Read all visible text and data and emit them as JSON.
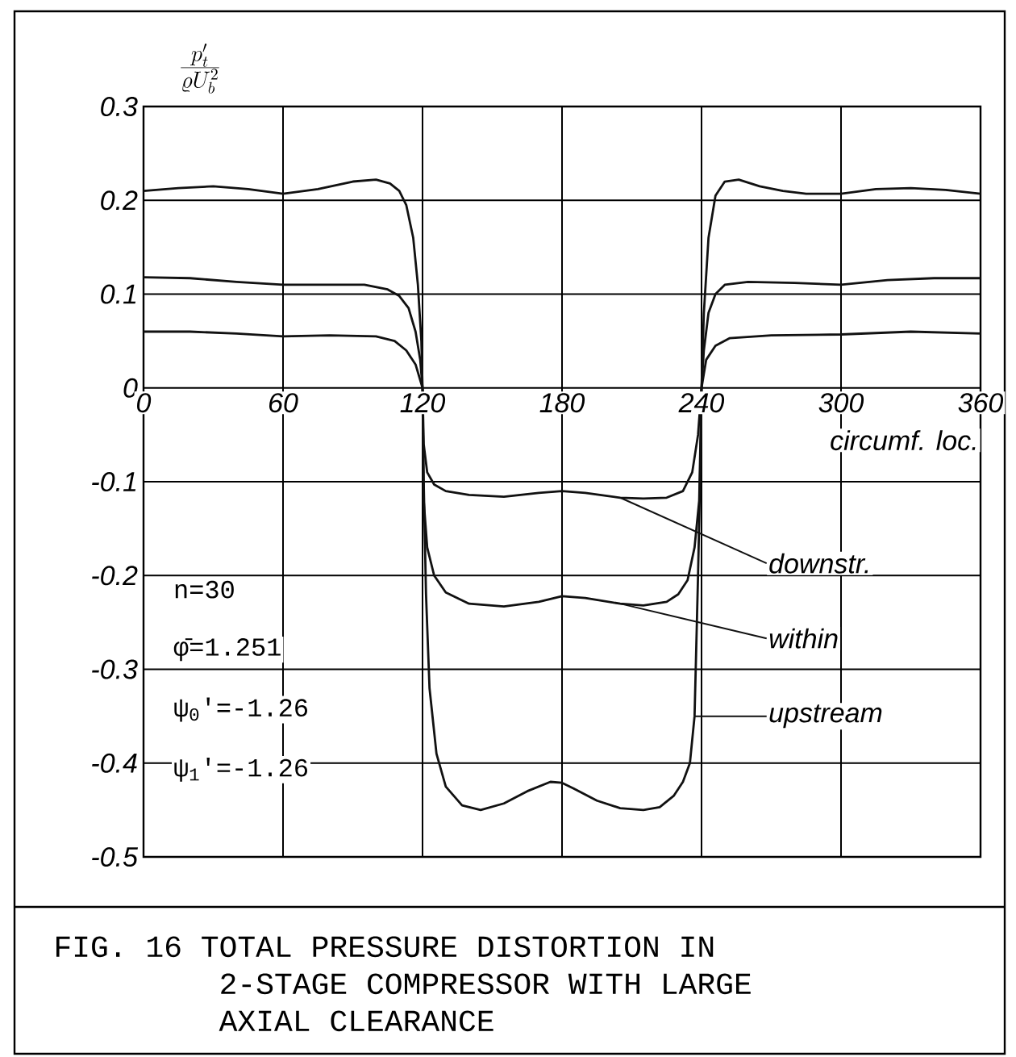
{
  "chart_data": {
    "type": "line",
    "title": "FIG. 16  TOTAL PRESSURE DISTORTION IN 2-STAGE COMPRESSOR WITH LARGE AXIAL CLEARANCE",
    "xlabel": "circumf. loc.",
    "ylabel": "\\frac{p_t'}{\\varrho U_b^2}",
    "xlim": [
      0,
      360
    ],
    "xticks": [
      0,
      60,
      120,
      180,
      240,
      300,
      360
    ],
    "ylim": [
      -0.5,
      0.3
    ],
    "yticks": [
      0.3,
      0.2,
      0.1,
      0,
      -0.1,
      -0.2,
      -0.3,
      -0.4,
      -0.5
    ],
    "grid": true,
    "marker": "none",
    "line_style": "solid",
    "annotations": [
      "n=30",
      "φ̄=1.251",
      "ψ$_{0}$'=-1.26",
      "ψ$_{1}$'=-1.26"
    ],
    "series": [
      {
        "name": "downstr.",
        "color": "#111111",
        "x": [
          0,
          20,
          40,
          60,
          80,
          100,
          108,
          113,
          117,
          120,
          120.5,
          122,
          125,
          130,
          140,
          155,
          170,
          180,
          190,
          205,
          215,
          225,
          232,
          236,
          238.5,
          240,
          242,
          246,
          252,
          270,
          300,
          330,
          360
        ],
        "values": [
          0.06,
          0.06,
          0.058,
          0.055,
          0.056,
          0.055,
          0.05,
          0.04,
          0.025,
          0,
          -0.06,
          -0.09,
          -0.103,
          -0.11,
          -0.114,
          -0.116,
          -0.112,
          -0.11,
          -0.112,
          -0.117,
          -0.118,
          -0.117,
          -0.11,
          -0.09,
          -0.05,
          0,
          0.03,
          0.045,
          0.053,
          0.056,
          0.057,
          0.06,
          0.058
        ]
      },
      {
        "name": "within",
        "color": "#111111",
        "x": [
          0,
          20,
          40,
          60,
          80,
          95,
          105,
          110,
          114,
          117,
          119,
          120,
          120.5,
          122,
          125,
          130,
          140,
          155,
          170,
          180,
          190,
          205,
          215,
          225,
          230,
          234,
          237,
          239,
          240,
          241,
          243,
          246,
          250,
          260,
          280,
          300,
          320,
          340,
          360
        ],
        "values": [
          0.118,
          0.117,
          0.113,
          0.11,
          0.11,
          0.11,
          0.105,
          0.098,
          0.085,
          0.06,
          0.03,
          0,
          -0.12,
          -0.17,
          -0.2,
          -0.218,
          -0.23,
          -0.233,
          -0.228,
          -0.222,
          -0.224,
          -0.23,
          -0.232,
          -0.228,
          -0.22,
          -0.205,
          -0.17,
          -0.12,
          0,
          0.04,
          0.08,
          0.1,
          0.11,
          0.113,
          0.112,
          0.11,
          0.115,
          0.117,
          0.117
        ]
      },
      {
        "name": "upstream",
        "color": "#111111",
        "x": [
          0,
          15,
          30,
          45,
          60,
          75,
          90,
          100,
          106,
          110,
          113,
          116,
          118,
          119.5,
          120,
          120.5,
          121.5,
          123,
          126,
          130,
          137,
          145,
          155,
          165,
          175,
          180,
          185,
          195,
          205,
          215,
          222,
          228,
          232,
          235,
          237,
          238.5,
          239.5,
          240,
          241,
          243,
          246,
          250,
          256,
          265,
          275,
          285,
          300,
          315,
          330,
          345,
          360
        ],
        "values": [
          0.21,
          0.213,
          0.215,
          0.212,
          0.207,
          0.212,
          0.22,
          0.222,
          0.218,
          0.21,
          0.195,
          0.16,
          0.11,
          0.05,
          0,
          -0.1,
          -0.22,
          -0.32,
          -0.39,
          -0.425,
          -0.445,
          -0.45,
          -0.443,
          -0.43,
          -0.42,
          -0.421,
          -0.427,
          -0.44,
          -0.448,
          -0.45,
          -0.447,
          -0.435,
          -0.42,
          -0.4,
          -0.35,
          -0.2,
          -0.08,
          0,
          0.08,
          0.16,
          0.205,
          0.22,
          0.222,
          0.215,
          0.21,
          0.207,
          0.207,
          0.212,
          0.213,
          0.211,
          0.207
        ]
      }
    ]
  }
}
